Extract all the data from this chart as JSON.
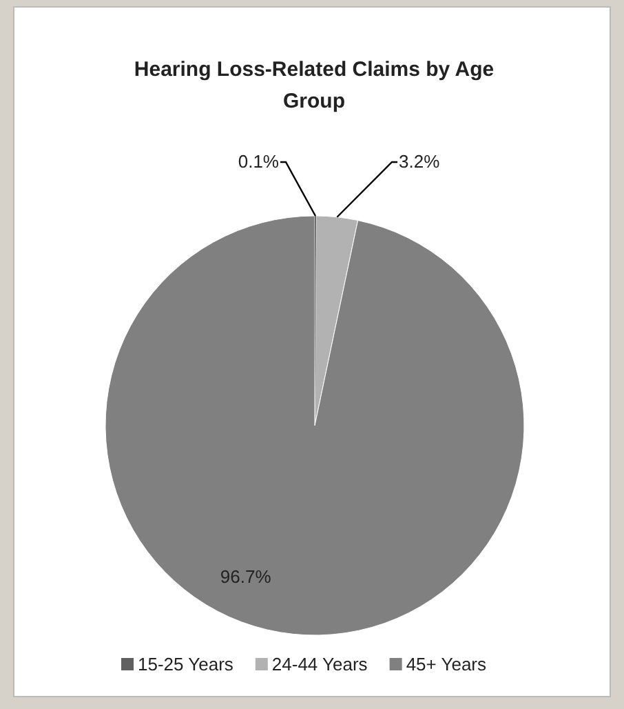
{
  "chart_data": {
    "type": "pie",
    "title": "Hearing Loss-Related Claims by Age Group",
    "categories": [
      "15-25 Years",
      "24-44 Years",
      "45+ Years"
    ],
    "values": [
      0.1,
      3.2,
      96.7
    ],
    "value_labels": [
      "0.1%",
      "3.2%",
      "96.7%"
    ],
    "colors": [
      "#606060",
      "#b2b2b2",
      "#808080"
    ],
    "legend": "bottom"
  }
}
